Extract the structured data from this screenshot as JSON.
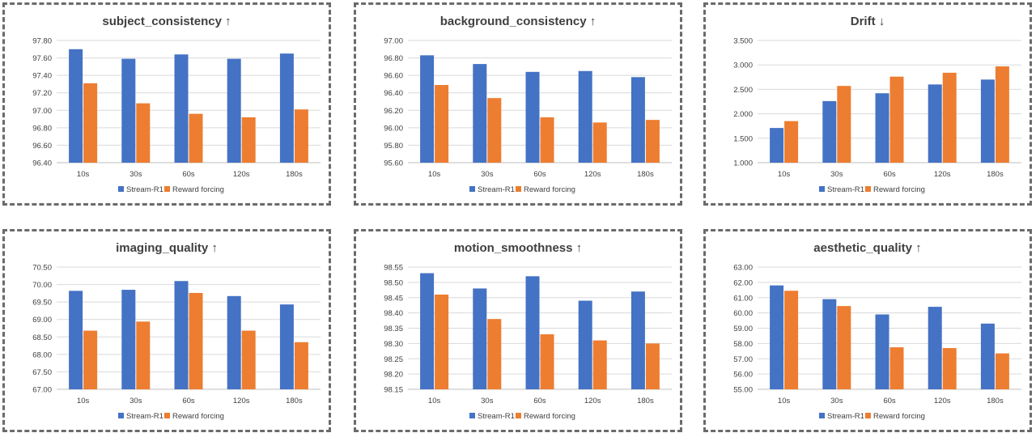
{
  "colors": {
    "stream": "#4472c4",
    "reward": "#ed7d31"
  },
  "chart_data": [
    {
      "type": "bar",
      "title": "subject_consistency ↑",
      "categories": [
        "10s",
        "30s",
        "60s",
        "120s",
        "180s"
      ],
      "series": [
        {
          "name": "Stream-R1",
          "values": [
            97.7,
            97.59,
            97.64,
            97.59,
            97.65
          ]
        },
        {
          "name": "Reward forcing",
          "values": [
            97.31,
            97.08,
            96.96,
            96.92,
            97.01
          ]
        }
      ],
      "ylim": [
        96.4,
        97.8
      ],
      "yticks": [
        "96.40",
        "96.60",
        "96.80",
        "97.00",
        "97.20",
        "97.40",
        "97.60",
        "97.80"
      ],
      "legend": "bottom",
      "grid": true
    },
    {
      "type": "bar",
      "title": "background_consistency ↑",
      "categories": [
        "10s",
        "30s",
        "60s",
        "120s",
        "180s"
      ],
      "series": [
        {
          "name": "Stream-R1",
          "values": [
            96.83,
            96.73,
            96.64,
            96.65,
            96.58
          ]
        },
        {
          "name": "Reward forcing",
          "values": [
            96.49,
            96.34,
            96.12,
            96.06,
            96.09
          ]
        }
      ],
      "ylim": [
        95.6,
        97.0
      ],
      "yticks": [
        "95.60",
        "95.80",
        "96.00",
        "96.20",
        "96.40",
        "96.60",
        "96.80",
        "97.00"
      ],
      "legend": "bottom",
      "grid": true
    },
    {
      "type": "bar",
      "title": "Drift ↓",
      "categories": [
        "10s",
        "30s",
        "60s",
        "120s",
        "180s"
      ],
      "series": [
        {
          "name": "Stream-R1",
          "values": [
            1.71,
            2.26,
            2.42,
            2.6,
            2.7
          ]
        },
        {
          "name": "Reward forcing",
          "values": [
            1.85,
            2.57,
            2.76,
            2.84,
            2.97
          ]
        }
      ],
      "ylim": [
        1.0,
        3.5
      ],
      "yticks": [
        "1.000",
        "1.500",
        "2.000",
        "2.500",
        "3.000",
        "3.500"
      ],
      "legend": "bottom",
      "grid": true
    },
    {
      "type": "bar",
      "title": "imaging_quality ↑",
      "categories": [
        "10s",
        "30s",
        "60s",
        "120s",
        "180s"
      ],
      "series": [
        {
          "name": "Stream-R1",
          "values": [
            69.82,
            69.85,
            70.1,
            69.67,
            69.43
          ]
        },
        {
          "name": "Reward forcing",
          "values": [
            68.68,
            68.94,
            69.76,
            68.68,
            68.35
          ]
        }
      ],
      "ylim": [
        67.0,
        70.5
      ],
      "yticks": [
        "67.00",
        "67.50",
        "68.00",
        "68.50",
        "69.00",
        "69.50",
        "70.00",
        "70.50"
      ],
      "legend": "bottom",
      "grid": true
    },
    {
      "type": "bar",
      "title": "motion_smoothness ↑",
      "categories": [
        "10s",
        "30s",
        "60s",
        "120s",
        "180s"
      ],
      "series": [
        {
          "name": "Stream-R1",
          "values": [
            98.53,
            98.48,
            98.52,
            98.44,
            98.47
          ]
        },
        {
          "name": "Reward forcing",
          "values": [
            98.46,
            98.38,
            98.33,
            98.31,
            98.3
          ]
        }
      ],
      "ylim": [
        98.15,
        98.55
      ],
      "yticks": [
        "98.15",
        "98.20",
        "98.25",
        "98.30",
        "98.35",
        "98.40",
        "98.45",
        "98.50",
        "98.55"
      ],
      "legend": "bottom",
      "grid": true
    },
    {
      "type": "bar",
      "title": "aesthetic_quality ↑",
      "categories": [
        "10s",
        "30s",
        "60s",
        "120s",
        "180s"
      ],
      "series": [
        {
          "name": "Stream-R1",
          "values": [
            61.8,
            60.9,
            59.9,
            60.4,
            59.3
          ]
        },
        {
          "name": "Reward forcing",
          "values": [
            61.45,
            60.45,
            57.75,
            57.7,
            57.35
          ]
        }
      ],
      "ylim": [
        55.0,
        63.0
      ],
      "yticks": [
        "55.00",
        "56.00",
        "57.00",
        "58.00",
        "59.00",
        "60.00",
        "61.00",
        "62.00",
        "63.00"
      ],
      "legend": "bottom",
      "grid": true
    }
  ]
}
